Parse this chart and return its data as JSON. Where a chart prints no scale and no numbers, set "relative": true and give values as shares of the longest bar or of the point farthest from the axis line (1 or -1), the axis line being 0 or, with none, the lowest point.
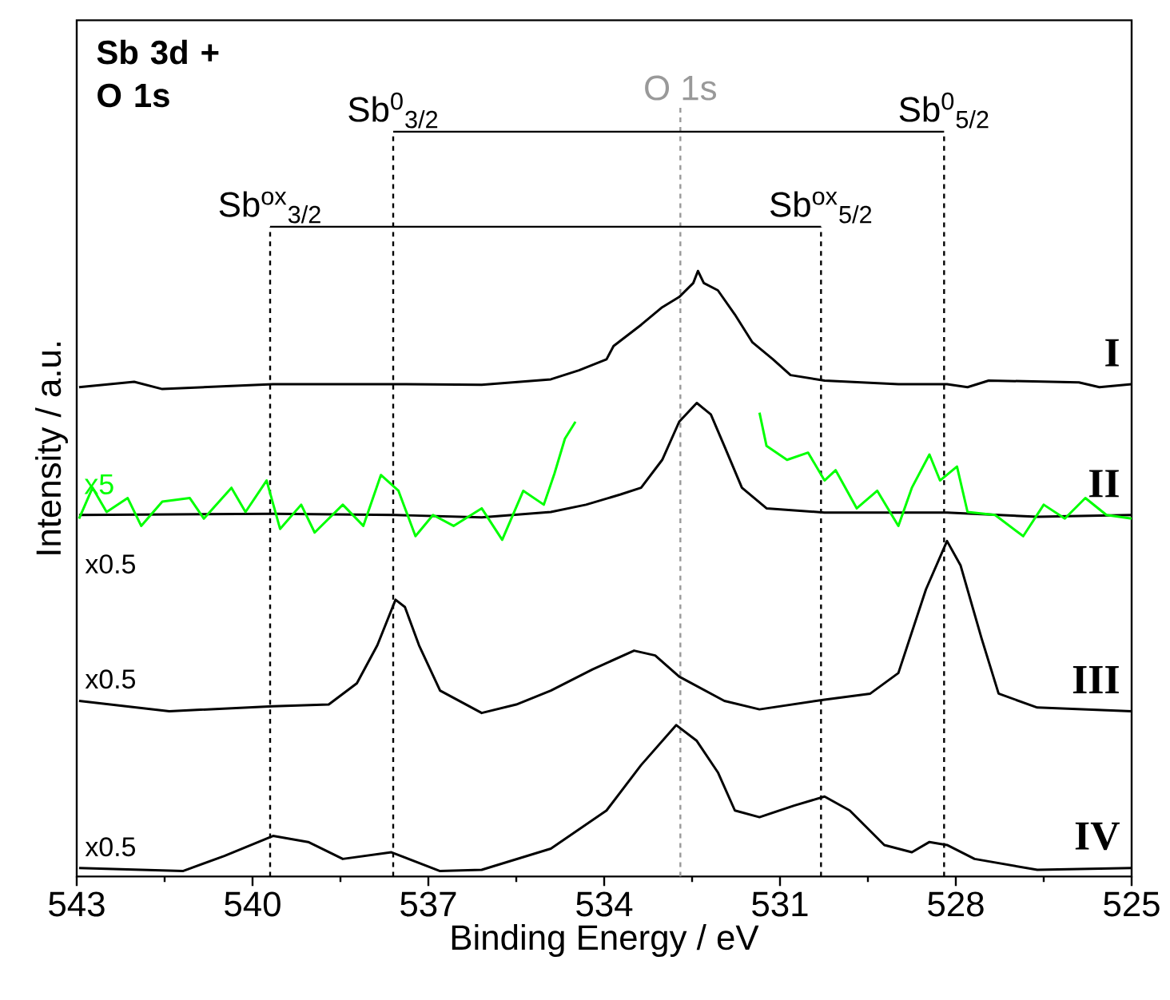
{
  "chart_data": {
    "type": "line",
    "title": "Sb 3d + O 1s",
    "xlabel": "Binding Energy / eV",
    "ylabel": "Intensity / a.u.",
    "relative": true,
    "xlim": [
      543,
      525
    ],
    "xticks": [
      543,
      540,
      537,
      534,
      531,
      528,
      525
    ],
    "tick_labels": "x",
    "line_style": "solid",
    "marker": "none",
    "series": [
      {
        "name": "I",
        "color": "#000000",
        "x": [
          542.96,
          542.02,
          541.54,
          539.65,
          537.56,
          536.09,
          534.91,
          534.43,
          533.96,
          533.84,
          533.37,
          533.01,
          532.72,
          532.48,
          532.4,
          532.3,
          532.06,
          531.77,
          531.47,
          531.12,
          530.82,
          530.24,
          528.98,
          528.15,
          527.8,
          527.44,
          525.9,
          525.55,
          525.0
        ],
        "values": [
          0.808,
          0.817,
          0.805,
          0.813,
          0.813,
          0.812,
          0.821,
          0.836,
          0.854,
          0.876,
          0.911,
          0.94,
          0.957,
          0.98,
          1.0,
          0.98,
          0.968,
          0.928,
          0.882,
          0.854,
          0.828,
          0.819,
          0.813,
          0.813,
          0.808,
          0.819,
          0.816,
          0.808,
          0.813
        ]
      },
      {
        "name": "II",
        "color": "#000000",
        "x": [
          542.96,
          539.65,
          537.56,
          536.09,
          534.91,
          534.31,
          533.72,
          533.37,
          533.01,
          532.72,
          532.42,
          532.18,
          531.95,
          531.65,
          531.23,
          530.24,
          528.15,
          526.61,
          525.0
        ],
        "values": [
          0.597,
          0.599,
          0.597,
          0.593,
          0.602,
          0.614,
          0.631,
          0.642,
          0.688,
          0.751,
          0.782,
          0.763,
          0.711,
          0.642,
          0.608,
          0.601,
          0.601,
          0.594,
          0.597
        ]
      },
      {
        "name": "x5",
        "color": "#00ff00",
        "x": [
          542.96,
          542.73,
          542.49,
          542.13,
          541.9,
          541.54,
          541.07,
          540.83,
          540.36,
          540.12,
          539.76,
          539.53,
          539.17,
          538.94,
          538.46,
          538.11,
          537.81,
          537.51,
          537.22,
          536.92,
          536.57,
          536.09,
          535.74,
          535.38,
          535.03,
          534.85,
          534.67,
          534.49,
          533.0,
          531.35,
          531.23,
          530.88,
          530.52,
          530.24,
          530.05,
          529.69,
          529.34,
          528.98,
          528.75,
          528.45,
          528.27,
          527.98,
          527.8,
          527.33,
          526.85,
          526.5,
          526.14,
          525.79,
          525.43,
          525.0
        ],
        "values": [
          0.591,
          0.642,
          0.602,
          0.625,
          0.579,
          0.619,
          0.625,
          0.591,
          0.642,
          0.602,
          0.654,
          0.574,
          0.614,
          0.568,
          0.614,
          0.579,
          0.663,
          0.637,
          0.562,
          0.597,
          0.579,
          0.608,
          0.556,
          0.637,
          0.614,
          0.665,
          0.723,
          0.751,
          null,
          0.766,
          0.711,
          0.688,
          0.7,
          0.654,
          0.671,
          0.608,
          0.637,
          0.579,
          0.642,
          0.697,
          0.654,
          0.677,
          0.602,
          0.597,
          0.562,
          0.614,
          0.591,
          0.625,
          0.597,
          0.591
        ]
      },
      {
        "name": "III",
        "color": "#000000",
        "x": [
          542.96,
          541.42,
          539.65,
          538.7,
          538.22,
          537.87,
          537.56,
          537.4,
          537.16,
          536.8,
          536.09,
          535.5,
          534.91,
          534.2,
          533.49,
          533.13,
          532.72,
          531.95,
          531.35,
          530.24,
          529.46,
          528.98,
          528.51,
          528.15,
          527.92,
          527.56,
          527.27,
          526.61,
          525.0
        ],
        "values": [
          0.29,
          0.273,
          0.281,
          0.284,
          0.319,
          0.382,
          0.457,
          0.445,
          0.382,
          0.307,
          0.27,
          0.284,
          0.307,
          0.342,
          0.373,
          0.365,
          0.33,
          0.29,
          0.276,
          0.292,
          0.302,
          0.336,
          0.474,
          0.554,
          0.514,
          0.393,
          0.302,
          0.279,
          0.273
        ]
      },
      {
        "name": "IV",
        "color": "#000000",
        "x": [
          542.96,
          541.19,
          540.48,
          539.65,
          539.05,
          538.46,
          537.63,
          536.8,
          536.09,
          534.91,
          533.96,
          533.37,
          532.77,
          532.42,
          532.06,
          531.77,
          531.35,
          530.76,
          530.24,
          529.81,
          529.22,
          528.75,
          528.45,
          528.15,
          527.68,
          526.61,
          525.0
        ],
        "values": [
          0.014,
          0.009,
          0.034,
          0.067,
          0.057,
          0.029,
          0.04,
          0.009,
          0.011,
          0.046,
          0.109,
          0.184,
          0.25,
          0.224,
          0.172,
          0.109,
          0.098,
          0.117,
          0.132,
          0.109,
          0.052,
          0.04,
          0.057,
          0.052,
          0.029,
          0.011,
          0.014
        ]
      }
    ],
    "ref_lines": [
      {
        "axis": "x",
        "value": 539.7,
        "label": "Sb$^{ox}$$_{3/2}$",
        "color": "#000000",
        "line_style": "dashed"
      },
      {
        "axis": "x",
        "value": 537.6,
        "label": "Sb$^{0}$$_{3/2}$",
        "color": "#000000",
        "line_style": "dashed"
      },
      {
        "axis": "x",
        "value": 532.7,
        "label": "O 1s",
        "color": "#999999",
        "line_style": "dashed"
      },
      {
        "axis": "x",
        "value": 530.3,
        "label": "Sb$^{ox}$$_{5/2}$",
        "color": "#000000",
        "line_style": "dashed"
      },
      {
        "axis": "x",
        "value": 528.2,
        "label": "Sb$^{0}$$_{5/2}$",
        "color": "#000000",
        "line_style": "dashed"
      }
    ],
    "annotations": [
      "x0.5",
      "x0.5",
      "x0.5"
    ]
  }
}
